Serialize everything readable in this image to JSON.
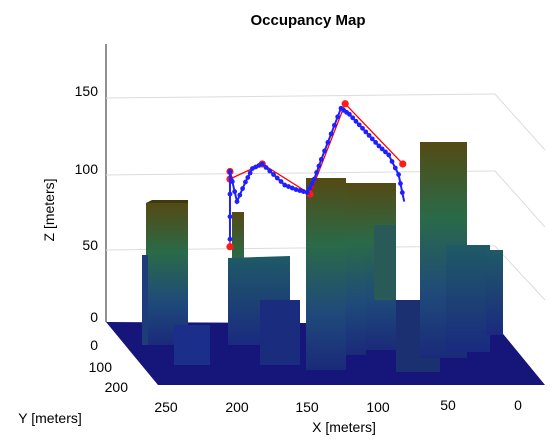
{
  "chart_data": {
    "type": "3d-scatter-line",
    "title": "Occupancy Map",
    "xlabel": "X [meters]",
    "ylabel": "Y [meters]",
    "zlabel": "Z [meters]",
    "x_ticks": [
      "0",
      "50",
      "100",
      "150",
      "200",
      "250"
    ],
    "y_ticks": [
      "0",
      "100",
      "200"
    ],
    "z_ticks": [
      "0",
      "50",
      "100",
      "150"
    ],
    "xlim": [
      0,
      250
    ],
    "ylim": [
      0,
      200
    ],
    "zlim": [
      0,
      150
    ],
    "grid": true,
    "colors": {
      "waypoint": "#ff1a1a",
      "reference_path": "#ff0000",
      "trajectory": "#2020ff",
      "ground": "#15157a"
    },
    "series": [
      {
        "x": [
          205,
          205,
          205,
          182,
          148,
          123,
          82
        ],
        "y": [
          50,
          50,
          50,
          50,
          50,
          50,
          50
        ],
        "z": [
          50,
          100,
          95,
          105,
          85,
          145,
          105
        ]
      },
      {
        "x": [
          205,
          205,
          200,
          194,
          189,
          182,
          174,
          166,
          158,
          150,
          145,
          140,
          133,
          126,
          120,
          113,
          106,
          99,
          92,
          85,
          81
        ],
        "y": [
          50,
          50,
          50,
          50,
          50,
          50,
          50,
          50,
          50,
          50,
          50,
          50,
          50,
          50,
          50,
          50,
          50,
          50,
          50,
          50,
          50
        ],
        "z": [
          55,
          100,
          80,
          93,
          102,
          105,
          98,
          91,
          88,
          86,
          95,
          108,
          125,
          142,
          138,
          131,
          124,
          117,
          111,
          98,
          80
        ]
      }
    ]
  }
}
